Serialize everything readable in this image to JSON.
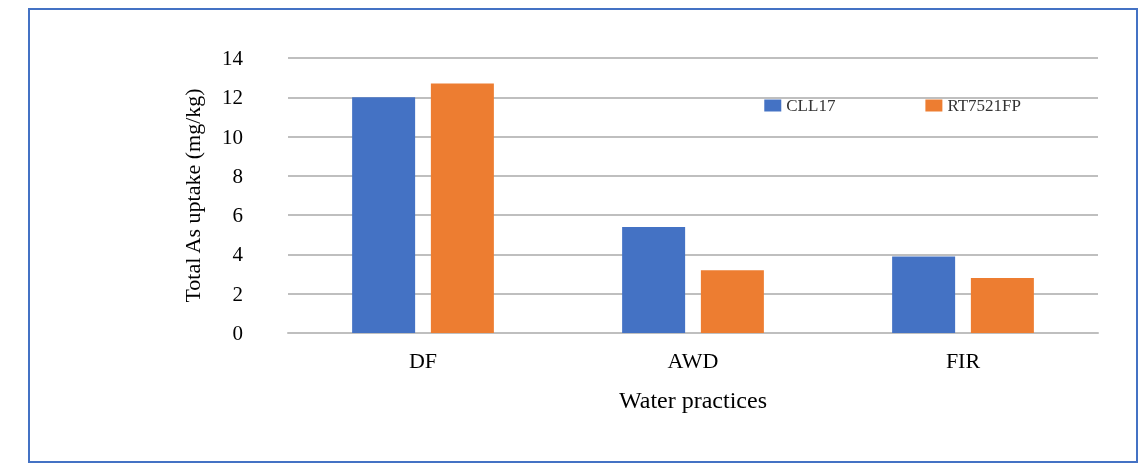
{
  "chart_data": {
    "type": "bar",
    "xlabel": "Water practices",
    "ylabel": "Total As uptake (mg/kg)",
    "categories": [
      "DF",
      "AWD",
      "FIR"
    ],
    "series": [
      {
        "name": "CLL17",
        "color": "#4472c4",
        "values": [
          12.0,
          5.4,
          3.9
        ]
      },
      {
        "name": "RT7521FP",
        "color": "#ed7d31",
        "values": [
          12.7,
          3.2,
          2.8
        ]
      }
    ],
    "ylim": [
      0,
      14
    ],
    "yticks": [
      0,
      2,
      4,
      6,
      8,
      10,
      12,
      14
    ],
    "grid": "y",
    "legend": "top right"
  }
}
